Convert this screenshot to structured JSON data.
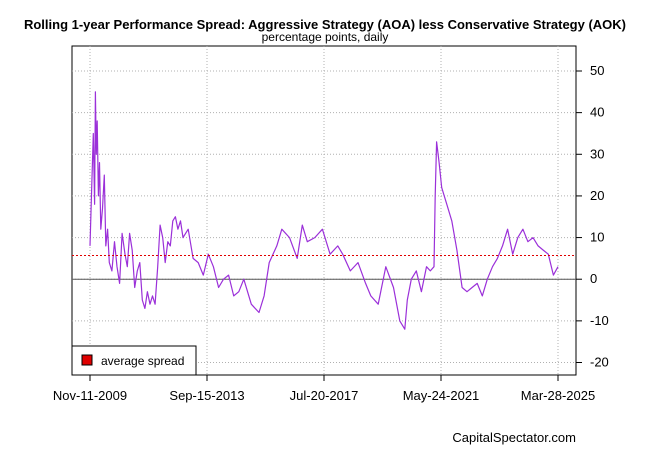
{
  "chart_data": {
    "type": "line",
    "title": "Rolling 1-year Performance Spread: Aggressive Strategy (AOA) less Conservative Strategy (AOK)",
    "subtitle": "percentage points, daily",
    "credit": "CapitalSpectator.com",
    "xlabel": "",
    "ylabel": "",
    "ylim": [
      -23,
      56
    ],
    "y_ticks": [
      50,
      40,
      30,
      20,
      10,
      0,
      -10,
      -20
    ],
    "x_ticks": [
      "Nov-11-2009",
      "Sep-15-2013",
      "Jul-20-2017",
      "May-24-2021",
      "Mar-28-2025"
    ],
    "x_range": [
      "2009-11-11",
      "2025-03-28"
    ],
    "grid": true,
    "average_spread": 5.7,
    "zero_line": 0,
    "legend": {
      "placement": "bottom-left",
      "entries": [
        {
          "label": "average spread",
          "color": "#e00000"
        }
      ]
    },
    "series_color": "#9b30d9",
    "series": [
      {
        "x": [
          "2009-11-11",
          "2009-12-01",
          "2009-12-20",
          "2010-01-05",
          "2010-01-15",
          "2010-01-25",
          "2010-02-05",
          "2010-02-20",
          "2010-03-05",
          "2010-03-20",
          "2010-04-10",
          "2010-05-01",
          "2010-05-20",
          "2010-06-10",
          "2010-07-01",
          "2010-08-01",
          "2010-09-01",
          "2010-10-01",
          "2010-11-01",
          "2010-12-01",
          "2011-01-05",
          "2011-02-01",
          "2011-03-01",
          "2011-04-01",
          "2011-05-01",
          "2011-06-01",
          "2011-07-01",
          "2011-08-01",
          "2011-09-01",
          "2011-10-01",
          "2011-11-01",
          "2011-12-01",
          "2012-01-01",
          "2012-02-01",
          "2012-03-01",
          "2012-04-01",
          "2012-05-01",
          "2012-06-01",
          "2012-07-01",
          "2012-08-01",
          "2012-09-01",
          "2012-10-01",
          "2012-11-01",
          "2012-12-01",
          "2013-02-01",
          "2013-04-01",
          "2013-06-01",
          "2013-08-01",
          "2013-10-01",
          "2013-12-01",
          "2014-02-01",
          "2014-04-01",
          "2014-06-01",
          "2014-08-01",
          "2014-10-01",
          "2014-12-01",
          "2015-03-01",
          "2015-06-01",
          "2015-08-01",
          "2015-10-01",
          "2016-01-01",
          "2016-03-01",
          "2016-06-01",
          "2016-09-01",
          "2016-11-01",
          "2017-01-01",
          "2017-04-01",
          "2017-07-01",
          "2017-10-01",
          "2018-01-01",
          "2018-03-01",
          "2018-06-01",
          "2018-09-01",
          "2018-12-01",
          "2019-02-01",
          "2019-05-01",
          "2019-08-01",
          "2019-11-01",
          "2020-01-15",
          "2020-03-15",
          "2020-04-15",
          "2020-06-01",
          "2020-08-01",
          "2020-10-01",
          "2020-12-01",
          "2021-01-15",
          "2021-03-01",
          "2021-03-15",
          "2021-04-01",
          "2021-05-01",
          "2021-06-01",
          "2021-08-01",
          "2021-10-01",
          "2021-12-01",
          "2022-02-01",
          "2022-04-01",
          "2022-06-01",
          "2022-08-01",
          "2022-10-01",
          "2022-12-01",
          "2023-02-01",
          "2023-04-01",
          "2023-06-01",
          "2023-08-01",
          "2023-10-01",
          "2023-12-01",
          "2024-02-01",
          "2024-04-01",
          "2024-06-01",
          "2024-08-01",
          "2024-10-01",
          "2024-12-01",
          "2025-02-01",
          "2025-03-28"
        ],
        "y": [
          8,
          22,
          35,
          18,
          45,
          30,
          38,
          20,
          28,
          12,
          17,
          25,
          8,
          12,
          4,
          2,
          9,
          3,
          -1,
          11,
          6,
          3,
          11,
          7,
          -2,
          2,
          4,
          -5,
          -7,
          -3,
          -6,
          -4,
          -6,
          3,
          13,
          10,
          4,
          9,
          8,
          14,
          15,
          12,
          14,
          10,
          12,
          5,
          4,
          1,
          6,
          3,
          -2,
          0,
          1,
          -4,
          -3,
          0,
          -6,
          -8,
          -4,
          4,
          8,
          12,
          10,
          5,
          13,
          9,
          10,
          12,
          6,
          8,
          6,
          2,
          4,
          -1,
          -4,
          -6,
          3,
          -2,
          -10,
          -12,
          -5,
          0,
          2,
          -3,
          3,
          2,
          3,
          20,
          33,
          28,
          22,
          18,
          14,
          7,
          -2,
          -3,
          -2,
          -1,
          -4,
          0,
          3,
          5,
          8,
          12,
          6,
          10,
          12,
          9,
          10,
          8,
          7,
          6,
          1,
          3
        ]
      }
    ]
  }
}
